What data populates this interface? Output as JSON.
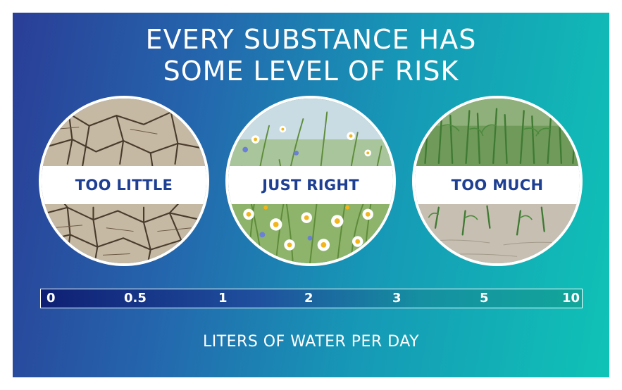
{
  "title": {
    "line1": "EVERY SUBSTANCE HAS",
    "line2": "SOME LEVEL OF RISK"
  },
  "panels": [
    {
      "label": "TOO LITTLE",
      "image": "cracked-dry-earth"
    },
    {
      "label": "JUST RIGHT",
      "image": "wildflower-meadow"
    },
    {
      "label": "TOO MUCH",
      "image": "flooded-crop-field"
    }
  ],
  "scale": {
    "ticks": [
      "0",
      "0.5",
      "1",
      "2",
      "3",
      "5",
      "10"
    ],
    "label": "LITERS OF WATER PER DAY"
  },
  "colors": {
    "label_text": "#1e3f92",
    "gradient_start": "#2a3e97",
    "gradient_end": "#0fc3b6"
  }
}
